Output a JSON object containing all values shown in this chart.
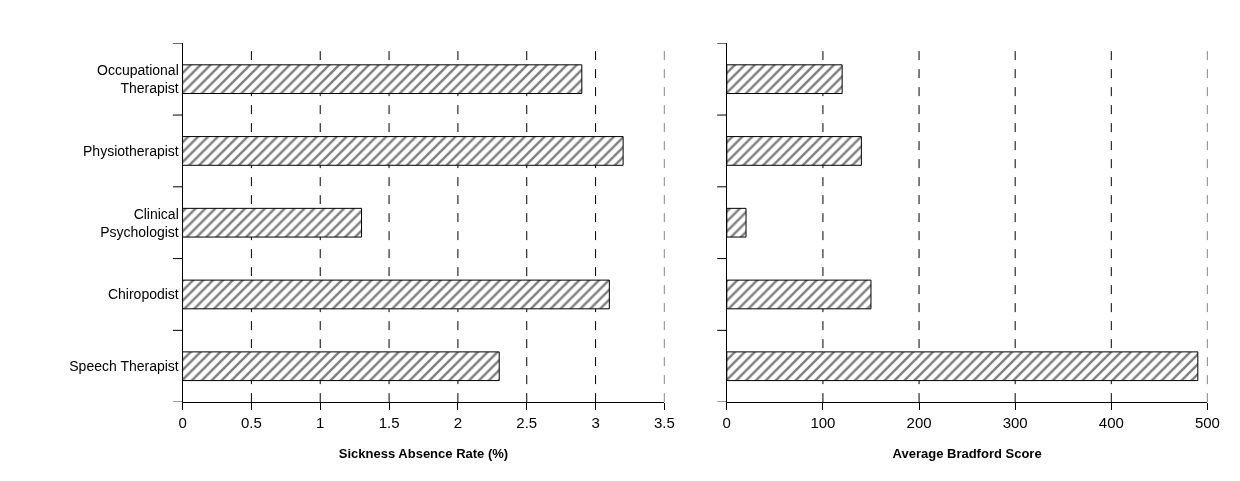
{
  "chart_data": [
    {
      "type": "bar",
      "orientation": "horizontal",
      "categories": [
        "Occupational Therapist",
        "Physiotherapist",
        "Clinical Psychologist",
        "Chiropodist",
        "Speech Therapist"
      ],
      "values": [
        2.9,
        3.2,
        1.3,
        3.1,
        2.3
      ],
      "color": "#000000",
      "xlim": [
        0,
        3.5
      ],
      "xticks": [
        0,
        0.5,
        1,
        1.5,
        2,
        2.5,
        3,
        3.5
      ],
      "xlabel": "Sickness Absence Rate (%)",
      "grid": "x",
      "legend": false
    },
    {
      "type": "bar",
      "orientation": "horizontal",
      "categories": [
        null,
        null,
        null,
        null,
        null
      ],
      "values": [
        120,
        140,
        20,
        150,
        490
      ],
      "color": "#000000",
      "xlim": [
        0,
        500
      ],
      "xticks": [
        0,
        100,
        200,
        300,
        400,
        500
      ],
      "xlabel": "Average Bradford Score",
      "grid": "x",
      "tick_labels": "x",
      "legend": false
    }
  ]
}
